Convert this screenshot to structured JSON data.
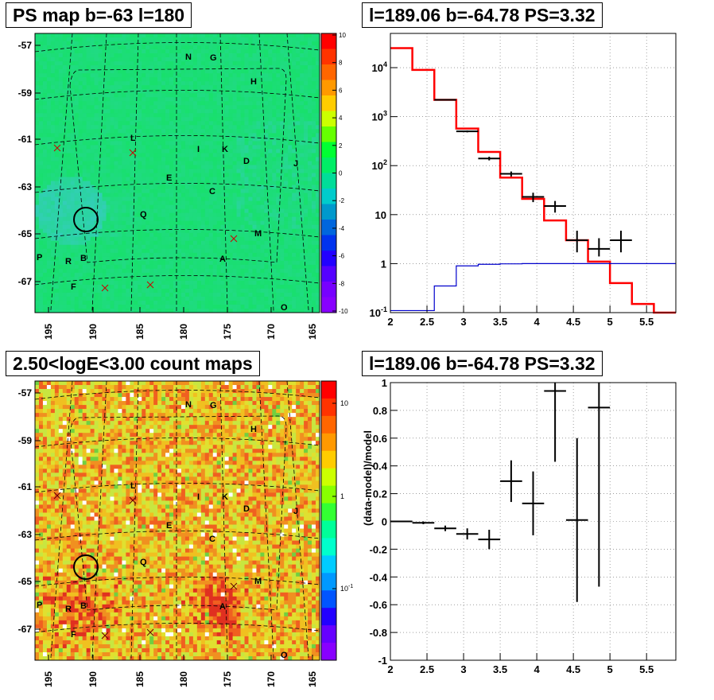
{
  "chart_data": [
    {
      "type": "heatmap",
      "title": "PS map b=-63 l=180",
      "map": "PS map",
      "b_ticks": [
        "-57",
        "-59",
        "-61",
        "-63",
        "-65",
        "-67"
      ],
      "l_ticks": [
        "195",
        "190",
        "185",
        "180",
        "175",
        "170",
        "165"
      ],
      "colorbar_ticks": [
        "10",
        "8",
        "6",
        "4",
        "2",
        "0",
        "-2",
        "-4",
        "-6",
        "-8",
        "-10"
      ],
      "colorbar_range": [
        -10,
        10
      ],
      "source_labels": [
        "N",
        "G",
        "H",
        "L",
        "I",
        "K",
        "D",
        "J",
        "E",
        "C",
        "Q",
        "M",
        "P",
        "R",
        "B",
        "A",
        "F",
        "O"
      ],
      "circle_marker": {
        "l": 189.06,
        "b": -64.78
      }
    },
    {
      "type": "line",
      "title": "l=189.06 b=-64.78 PS=3.32",
      "xlabel": "",
      "ylabel": "",
      "xlim": [
        2,
        5.9
      ],
      "ylim": [
        0.1,
        50000
      ],
      "yscale": "log",
      "x_ticks": [
        "2",
        "2.5",
        "3",
        "3.5",
        "4",
        "4.5",
        "5",
        "5.5"
      ],
      "y_ticks": [
        "10^-1",
        "1",
        "10",
        "10^2",
        "10^3",
        "10^4"
      ],
      "grid": true,
      "series": [
        {
          "color": "#ff0000",
          "style": "step",
          "edges": [
            2.0,
            2.3,
            2.6,
            2.9,
            3.2,
            3.5,
            3.8,
            4.1,
            4.4,
            4.7,
            5.0,
            5.3,
            5.6,
            5.9
          ],
          "values": [
            25000,
            9000,
            2200,
            570,
            190,
            57,
            21,
            7.6,
            3.0,
            1.1,
            0.4,
            0.15,
            0.09
          ]
        },
        {
          "color": "#0000cc",
          "style": "step",
          "edges": [
            2.0,
            2.3,
            2.6,
            2.9,
            3.2,
            3.5,
            3.8,
            4.1,
            4.4,
            4.7,
            5.0,
            5.3,
            5.6,
            5.9
          ],
          "values": [
            0.11,
            0.11,
            0.35,
            0.9,
            0.97,
            0.99,
            1.0,
            1.0,
            1.0,
            1.0,
            1.0,
            1.0,
            1.0
          ]
        },
        {
          "color": "#000000",
          "style": "points",
          "x": [
            2.75,
            3.05,
            3.35,
            3.65,
            3.95,
            4.25,
            4.55,
            4.85,
            5.15
          ],
          "y": [
            2200,
            500,
            140,
            68,
            23,
            15,
            3,
            2,
            3
          ],
          "yerr_lo": [
            2153,
            478,
            128,
            60,
            18,
            11,
            1.7,
            1.4,
            1.7
          ],
          "yerr_hi": [
            2247,
            522,
            152,
            76,
            28,
            19,
            4.7,
            3.3,
            4.7
          ],
          "xerr": 0.15
        }
      ]
    },
    {
      "type": "heatmap",
      "title": "2.50<logE<3.00 count maps",
      "b_ticks": [
        "-57",
        "-59",
        "-61",
        "-63",
        "-65",
        "-67"
      ],
      "l_ticks": [
        "195",
        "190",
        "185",
        "180",
        "175",
        "170",
        "165"
      ],
      "colorbar_ticks": [
        "10",
        "1",
        "10^-1"
      ],
      "colorbar_scale": "log",
      "source_labels": [
        "N",
        "G",
        "H",
        "L",
        "I",
        "K",
        "D",
        "J",
        "E",
        "C",
        "Q",
        "M",
        "P",
        "R",
        "B",
        "A",
        "F",
        "O"
      ]
    },
    {
      "type": "scatter",
      "title": "l=189.06 b=-64.78 PS=3.32",
      "xlabel": "",
      "ylabel": "(data-model)/model",
      "xlim": [
        2,
        5.9
      ],
      "ylim": [
        -1,
        1
      ],
      "x_ticks": [
        "2",
        "2.5",
        "3",
        "3.5",
        "4",
        "4.5",
        "5",
        "5.5"
      ],
      "y_ticks": [
        "-1",
        "-0.8",
        "-0.6",
        "-0.4",
        "-0.2",
        "0",
        "0.2",
        "0.4",
        "0.6",
        "0.8",
        "1"
      ],
      "grid": true,
      "points": {
        "x": [
          2.15,
          2.45,
          2.75,
          3.05,
          3.35,
          3.65,
          3.95,
          4.25,
          4.55,
          4.85
        ],
        "y": [
          0.0,
          -0.01,
          -0.05,
          -0.09,
          -0.13,
          0.29,
          0.13,
          0.94,
          0.01,
          0.82
        ],
        "err": [
          0.0,
          0.01,
          0.02,
          0.04,
          0.07,
          0.15,
          0.23,
          0.51,
          0.59,
          1.29
        ],
        "xerr": 0.15
      }
    }
  ]
}
